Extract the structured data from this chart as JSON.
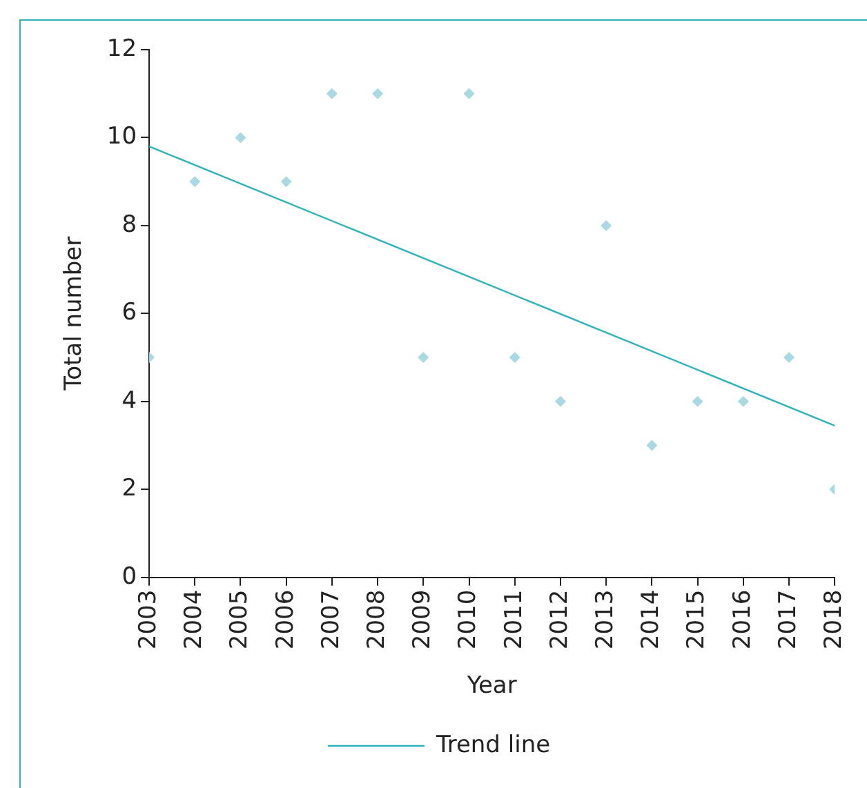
{
  "chart_data": {
    "type": "scatter",
    "xlabel": "Year",
    "ylabel": "Total number",
    "x": [
      2003,
      2004,
      2005,
      2006,
      2007,
      2008,
      2009,
      2010,
      2011,
      2012,
      2013,
      2014,
      2015,
      2016,
      2017,
      2018
    ],
    "xlim": [
      2003,
      2018
    ],
    "xticks": [
      2003,
      2004,
      2005,
      2006,
      2007,
      2008,
      2009,
      2010,
      2011,
      2012,
      2013,
      2014,
      2015,
      2016,
      2017,
      2018
    ],
    "ylim": [
      0,
      12
    ],
    "yticks": [
      0,
      2,
      4,
      6,
      8,
      10,
      12
    ],
    "series": [
      {
        "color": "#a9d9e2",
        "marker": "diamond",
        "values": [
          5,
          9,
          10,
          9,
          11,
          11,
          5,
          11,
          5,
          4,
          8,
          3,
          4,
          4,
          5,
          2
        ]
      },
      {
        "type": "line",
        "name": "Trend line",
        "color": "#2eb3bd",
        "x": [
          2003,
          2018
        ],
        "values": [
          9.8,
          3.45
        ],
        "marker": "none",
        "line_style": "solid"
      }
    ],
    "grid": false,
    "legend": "bottom"
  }
}
